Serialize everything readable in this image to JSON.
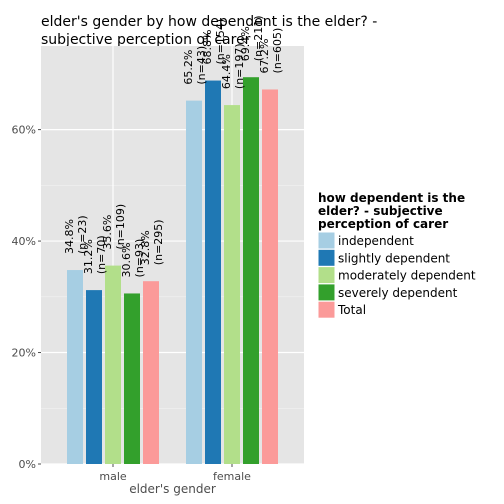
{
  "chart_data": {
    "type": "bar",
    "title": "elder's gender by how dependent is the elder? - subjective perception of carer",
    "title_lines": [
      "elder's gender by how dependent is the elder? -",
      "subjective perception of carer"
    ],
    "xlabel": "elder's gender",
    "ylabel": "",
    "categories": [
      "male",
      "female"
    ],
    "ylim": [
      0,
      0.75
    ],
    "yticks": [
      0,
      0.2,
      0.4,
      0.6
    ],
    "ytick_labels": [
      "0%",
      "20%",
      "40%",
      "60%"
    ],
    "grid": true,
    "legend": {
      "title_lines": [
        "how dependent is the",
        "elder? - subjective",
        "perception of carer"
      ],
      "placement": "right"
    },
    "series": [
      {
        "name": "independent",
        "color": "#a6cee3",
        "values": [
          0.348,
          0.652
        ],
        "labels": [
          [
            "34.8%",
            "(n=23)"
          ],
          [
            "65.2%",
            "(n=43)"
          ]
        ]
      },
      {
        "name": "slightly dependent",
        "color": "#1f78b4",
        "values": [
          0.312,
          0.688
        ],
        "labels": [
          [
            "31.2%",
            "(n=70)"
          ],
          [
            "68.8%",
            "(n=154)"
          ]
        ]
      },
      {
        "name": "moderately dependent",
        "color": "#b2df8a",
        "values": [
          0.356,
          0.644
        ],
        "labels": [
          [
            "35.6%",
            "(n=109)"
          ],
          [
            "64.4%",
            "(n=197)"
          ]
        ]
      },
      {
        "name": "severely dependent",
        "color": "#33a02c",
        "values": [
          0.306,
          0.694
        ],
        "labels": [
          [
            "30.6%",
            "(n=93)"
          ],
          [
            "69.4%",
            "(n=211)"
          ]
        ]
      },
      {
        "name": "Total",
        "color": "#fb9a99",
        "values": [
          0.328,
          0.672
        ],
        "labels": [
          [
            "32.8%",
            "(n=295)"
          ],
          [
            "67.2%",
            "(n=605)"
          ]
        ]
      }
    ]
  }
}
